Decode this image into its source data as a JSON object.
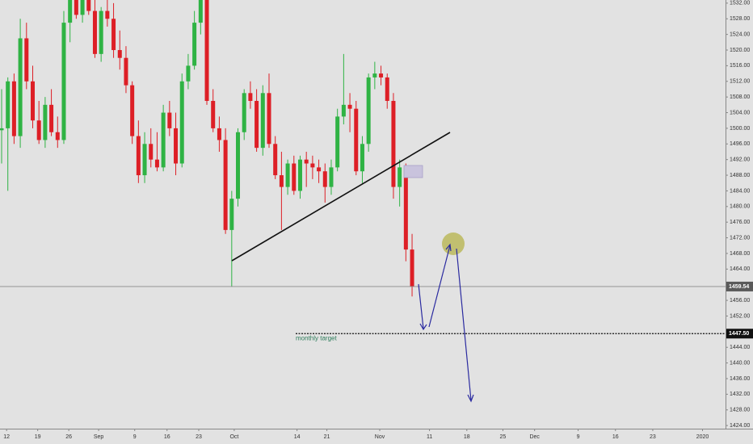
{
  "chart_data": {
    "type": "candlestick",
    "x": [
      0,
      1,
      2,
      3,
      4,
      5,
      6,
      7,
      8,
      9,
      10,
      11,
      12,
      13,
      14,
      15,
      16,
      17,
      18,
      19,
      20,
      21,
      22,
      23,
      24,
      25,
      26,
      27,
      28,
      29,
      30,
      31,
      32,
      33,
      34,
      35,
      36,
      37,
      38,
      39,
      40,
      41,
      42,
      43,
      44,
      45,
      46,
      47,
      48,
      49,
      50,
      51,
      52,
      53,
      54,
      55,
      56,
      57,
      58,
      59,
      60,
      61,
      62,
      63,
      64,
      65,
      66
    ],
    "open": [
      1499.5,
      1500,
      1512,
      1498,
      1523,
      1512,
      1502,
      1497,
      1506,
      1499,
      1497,
      1527,
      1533,
      1529,
      1533,
      1530,
      1519,
      1530,
      1528,
      1520,
      1518,
      1511,
      1498,
      1488,
      1496,
      1492,
      1490,
      1504,
      1500,
      1491,
      1512,
      1516,
      1527,
      1533,
      1507,
      1500,
      1497,
      1474,
      1482,
      1499,
      1509,
      1507,
      1495,
      1509,
      1496,
      1488,
      1485,
      1491,
      1484,
      1492,
      1491,
      1490,
      1489,
      1485,
      1490,
      1503,
      1506,
      1505,
      1489,
      1496,
      1513,
      1514,
      1513,
      1507,
      1485,
      1490,
      1469
    ],
    "high": [
      1510,
      1513,
      1514,
      1528,
      1527,
      1516,
      1507,
      1508,
      1510,
      1503,
      1530,
      1535,
      1535,
      1535,
      1536,
      1533,
      1531,
      1535,
      1532,
      1525,
      1521,
      1512,
      1502,
      1499,
      1500,
      1499,
      1506,
      1507,
      1504,
      1514,
      1519,
      1530,
      1535,
      1534,
      1510,
      1503,
      1500,
      1484,
      1500,
      1510,
      1512,
      1510,
      1511,
      1514,
      1498,
      1494,
      1492,
      1493,
      1493,
      1494,
      1493,
      1492,
      1491,
      1492,
      1505,
      1519,
      1509,
      1507,
      1498,
      1514,
      1517,
      1516,
      1514,
      1509,
      1492,
      1491,
      1473
    ],
    "low": [
      1491,
      1484,
      1496,
      1495,
      1510,
      1500,
      1496,
      1495,
      1498,
      1495,
      1496,
      1522,
      1528,
      1527,
      1529,
      1518,
      1517,
      1526,
      1518,
      1515,
      1509,
      1496,
      1486,
      1486,
      1490,
      1489,
      1489,
      1498,
      1488,
      1490,
      1510,
      1515,
      1524,
      1506,
      1499,
      1494,
      1473,
      1459.5,
      1480,
      1497,
      1505,
      1494,
      1493,
      1495,
      1487,
      1474,
      1483,
      1483,
      1482,
      1485,
      1487,
      1486,
      1481,
      1483,
      1489,
      1501,
      1499,
      1488,
      1486,
      1494,
      1510,
      1511,
      1505,
      1482,
      1480,
      1466,
      1457
    ],
    "close": [
      1500,
      1512,
      1498,
      1523,
      1512,
      1502,
      1497,
      1506,
      1499,
      1497,
      1527,
      1533,
      1529,
      1533,
      1530,
      1519,
      1530,
      1528,
      1520,
      1518,
      1511,
      1498,
      1488,
      1496,
      1492,
      1490,
      1504,
      1500,
      1491,
      1512,
      1516,
      1527,
      1533,
      1507,
      1500,
      1497,
      1474,
      1482,
      1499,
      1509,
      1507,
      1495,
      1509,
      1496,
      1488,
      1485,
      1491,
      1484,
      1492,
      1491,
      1490,
      1489,
      1485,
      1490,
      1503,
      1506,
      1505,
      1489,
      1496,
      1513,
      1514,
      1513,
      1507,
      1485,
      1490,
      1469,
      1459.54
    ],
    "up_color": "#2fb344",
    "down_color": "#dd1f26",
    "xlim": [
      -0.26,
      116.4
    ],
    "xticks": [
      {
        "value": 0.8,
        "label": "12"
      },
      {
        "value": 5.8,
        "label": "19"
      },
      {
        "value": 10.8,
        "label": "26"
      },
      {
        "value": 15.6,
        "label": "Sep"
      },
      {
        "value": 21.4,
        "label": "9"
      },
      {
        "value": 26.6,
        "label": "16"
      },
      {
        "value": 31.7,
        "label": "23"
      },
      {
        "value": 37.4,
        "label": "Oct"
      },
      {
        "value": 47.5,
        "label": "14"
      },
      {
        "value": 52.3,
        "label": "21"
      },
      {
        "value": 60.8,
        "label": "Nov"
      },
      {
        "value": 68.8,
        "label": "11"
      },
      {
        "value": 74.8,
        "label": "18"
      },
      {
        "value": 80.6,
        "label": "25"
      },
      {
        "value": 85.7,
        "label": "Dec"
      },
      {
        "value": 92.7,
        "label": "9"
      },
      {
        "value": 98.7,
        "label": "16"
      },
      {
        "value": 104.7,
        "label": "23"
      },
      {
        "value": 112.7,
        "label": "2020"
      }
    ],
    "ylim": [
      1423.2,
      1532.8
    ],
    "yticks": [
      {
        "value": 1424,
        "label": "1424.00"
      },
      {
        "value": 1428,
        "label": "1428.00"
      },
      {
        "value": 1432,
        "label": "1432.00"
      },
      {
        "value": 1436,
        "label": "1436.00"
      },
      {
        "value": 1440,
        "label": "1440.00"
      },
      {
        "value": 1444,
        "label": "1444.00"
      },
      {
        "value": 1448,
        "label": "1448.00"
      },
      {
        "value": 1452,
        "label": "1452.00"
      },
      {
        "value": 1456,
        "label": "1456.00"
      },
      {
        "value": 1460,
        "label": "1460.00"
      },
      {
        "value": 1464,
        "label": "1464.00"
      },
      {
        "value": 1468,
        "label": "1468.00"
      },
      {
        "value": 1472,
        "label": "1472.00"
      },
      {
        "value": 1476,
        "label": "1476.00"
      },
      {
        "value": 1480,
        "label": "1480.00"
      },
      {
        "value": 1484,
        "label": "1484.00"
      },
      {
        "value": 1488,
        "label": "1488.00"
      },
      {
        "value": 1492,
        "label": "1492.00"
      },
      {
        "value": 1496,
        "label": "1496.00"
      },
      {
        "value": 1500,
        "label": "1500.00"
      },
      {
        "value": 1504,
        "label": "1504.00"
      },
      {
        "value": 1508,
        "label": "1508.00"
      },
      {
        "value": 1512,
        "label": "1512.00"
      },
      {
        "value": 1516,
        "label": "1516.00"
      },
      {
        "value": 1520,
        "label": "1520.00"
      },
      {
        "value": 1524,
        "label": "1524.00"
      },
      {
        "value": 1528,
        "label": "1528.00"
      },
      {
        "value": 1532,
        "label": "1532.00"
      }
    ],
    "current_price": 1459.54,
    "target": {
      "value": 1447.5,
      "label": "1447.50",
      "name": "monthly target"
    }
  }
}
